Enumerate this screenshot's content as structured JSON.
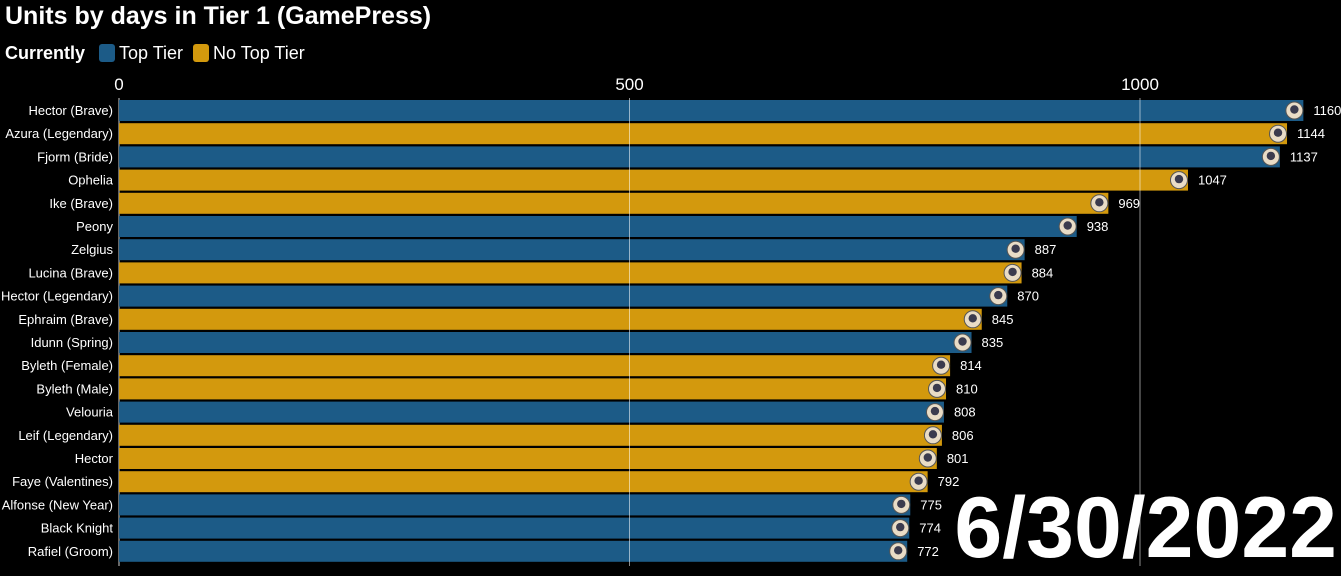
{
  "title": "Units by days in Tier 1 (GamePress)",
  "legend": {
    "heading": "Currently",
    "items": [
      {
        "label": "Top Tier",
        "color": "#1c5b87"
      },
      {
        "label": "No Top Tier",
        "color": "#d3990d"
      }
    ]
  },
  "date": "6/30/2022",
  "chart_data": {
    "type": "bar",
    "orientation": "horizontal",
    "title": "Units by days in Tier 1 (GamePress)",
    "xlim": [
      0,
      1160
    ],
    "x_ticks": [
      0,
      500,
      1000
    ],
    "grid": true,
    "legend_placement": "top-left",
    "categories": [
      "Hector (Brave)",
      "Azura (Legendary)",
      "Fjorm (Bride)",
      "Ophelia",
      "Ike (Brave)",
      "Peony",
      "Zelgius",
      "Lucina (Brave)",
      "Hector (Legendary)",
      "Ephraim (Brave)",
      "Idunn (Spring)",
      "Byleth (Female)",
      "Byleth (Male)",
      "Velouria",
      "Leif (Legendary)",
      "Hector",
      "Faye (Valentines)",
      "Alfonse (New Year)",
      "Black Knight",
      "Rafiel (Groom)"
    ],
    "values": [
      1160,
      1144,
      1137,
      1047,
      969,
      938,
      887,
      884,
      870,
      845,
      835,
      814,
      810,
      808,
      806,
      801,
      792,
      775,
      774,
      772
    ],
    "groups": [
      "Top Tier",
      "No Top Tier",
      "Top Tier",
      "No Top Tier",
      "No Top Tier",
      "Top Tier",
      "Top Tier",
      "No Top Tier",
      "Top Tier",
      "No Top Tier",
      "Top Tier",
      "No Top Tier",
      "No Top Tier",
      "Top Tier",
      "No Top Tier",
      "No Top Tier",
      "No Top Tier",
      "Top Tier",
      "Top Tier",
      "Top Tier"
    ],
    "colors": {
      "Top Tier": "#1c5b87",
      "No Top Tier": "#d3990d"
    }
  }
}
